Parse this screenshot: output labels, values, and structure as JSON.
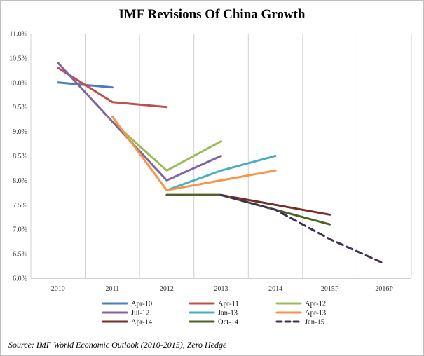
{
  "chart_data": {
    "type": "line",
    "title": "IMF Revisions Of China Growth",
    "xlabel": "",
    "ylabel": "",
    "categories": [
      "2010",
      "2011",
      "2012",
      "2013",
      "2014",
      "2015P",
      "2016P"
    ],
    "y_ticks": [
      "6.0%",
      "6.5%",
      "7.0%",
      "7.5%",
      "8.0%",
      "8.5%",
      "9.0%",
      "9.5%",
      "10.0%",
      "10.5%",
      "11.0%"
    ],
    "ylim": [
      6.0,
      11.0
    ],
    "grid": "vertical",
    "legend_position": "bottom",
    "series": [
      {
        "name": "Apr-10",
        "color": "#4a7ebb",
        "dash": false,
        "points": [
          [
            0,
            10.0
          ],
          [
            1,
            9.9
          ]
        ]
      },
      {
        "name": "Apr-11",
        "color": "#c0504d",
        "dash": false,
        "points": [
          [
            0,
            10.3
          ],
          [
            1,
            9.6
          ],
          [
            2,
            9.5
          ]
        ]
      },
      {
        "name": "Apr-12",
        "color": "#9bbb59",
        "dash": false,
        "points": [
          [
            1,
            9.2
          ],
          [
            2,
            8.2
          ],
          [
            3,
            8.8
          ]
        ]
      },
      {
        "name": "Jul-12",
        "color": "#8064a2",
        "dash": false,
        "points": [
          [
            0,
            10.4
          ],
          [
            1,
            9.2
          ],
          [
            2,
            8.0
          ],
          [
            3,
            8.5
          ]
        ]
      },
      {
        "name": "Jan-13",
        "color": "#4bacc6",
        "dash": false,
        "points": [
          [
            2,
            7.8
          ],
          [
            3,
            8.2
          ],
          [
            4,
            8.5
          ]
        ]
      },
      {
        "name": "Apr-13",
        "color": "#f79646",
        "dash": false,
        "points": [
          [
            1,
            9.3
          ],
          [
            2,
            7.8
          ],
          [
            3,
            8.0
          ],
          [
            4,
            8.2
          ]
        ]
      },
      {
        "name": "Apr-14",
        "color": "#772c2a",
        "dash": false,
        "points": [
          [
            2,
            7.7
          ],
          [
            3,
            7.7
          ],
          [
            4,
            7.5
          ],
          [
            5,
            7.3
          ]
        ]
      },
      {
        "name": "Oct-14",
        "color": "#4f6228",
        "dash": false,
        "points": [
          [
            2,
            7.7
          ],
          [
            3,
            7.7
          ],
          [
            4,
            7.4
          ],
          [
            5,
            7.1
          ]
        ]
      },
      {
        "name": "Jan-15",
        "color": "#403152",
        "dash": true,
        "points": [
          [
            3,
            7.7
          ],
          [
            4,
            7.4
          ],
          [
            5,
            6.8
          ],
          [
            6,
            6.3
          ]
        ]
      }
    ]
  },
  "source_text": "Source: IMF World Economic Outlook (2010-2015), Zero Hedge"
}
